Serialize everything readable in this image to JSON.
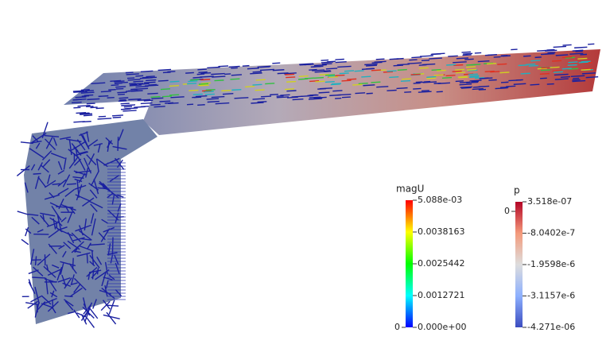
{
  "legends": [
    {
      "title": "magU",
      "range": [
        0,
        0.005088
      ],
      "colormap": "rainbow",
      "ticks": [
        {
          "value": 0.005088,
          "label": "5.088e-03"
        },
        0.0038163,
        0.0025442,
        0.0012721,
        {
          "value": 0,
          "label": "0.000e+00"
        }
      ],
      "left_ticks": [
        0
      ]
    },
    {
      "title": "p",
      "range": [
        -4.271e-06,
        3.518e-07
      ],
      "colormap": "cool-warm",
      "ticks": [
        {
          "value": 3.518e-07,
          "label": "3.518e-07"
        },
        {
          "value": -8.0402e-07,
          "label": "-8.0402e-7"
        },
        {
          "value": -1.9598e-06,
          "label": "-1.9598e-6"
        },
        {
          "value": -3.1157e-06,
          "label": "-3.1157e-6"
        },
        {
          "value": -4.271e-06,
          "label": "-4.271e-06"
        }
      ],
      "left_ticks": [
        0
      ]
    }
  ]
}
